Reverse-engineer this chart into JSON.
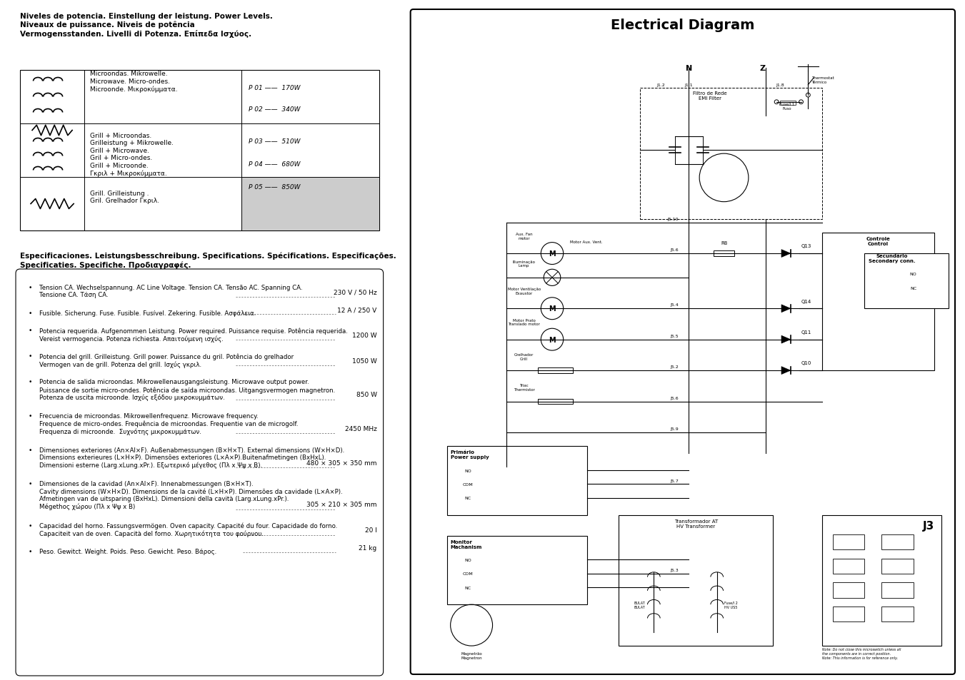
{
  "title": "Electrical Diagram",
  "bg": "#ffffff",
  "power_levels_header": "Niveles de potencia. Einstellung der leistung. Power Levels.\nNiveaux de puissance. Niveis de potência\nVermogensstanden. Livelli di Potenza. Επίπεδα Ισχύος.",
  "row1_text": "Microondas. Mikrowelle.\nMicrowave. Micro-ondes.\nMicroonde. Μικροκύμματα.",
  "row1_levels": [
    "P 01 ——  170W",
    "P 02 ——  340W"
  ],
  "row2_text": "Grill + Microondas.\nGrilleistung + Mikrowelle.\nGrill + Microwave.\nGril + Micro-ondes.\nGrill + Microonde.\nΓκριλ + Μικροκύμματα.",
  "row2_levels": [
    "P 03 ——  510W",
    "P 04 ——  680W",
    "P 05 ——  850W"
  ],
  "row3_text": "Grill. Grilleistung .\nGril. Grelhador Γκριλ.",
  "specs_header": "Especificaciones. Leistungsbesschreibung. Specifications. Spécifications. Especificações.\nSpecificaties. Specifiche. Προδιαγραφές.",
  "specs": [
    [
      "Tension CA. Wechselspannung. AC Line Voltage. Tension CA. Tensão AC. Spanning CA.\nTensione CA. Tάση CA.",
      "230 V / 50 Hz"
    ],
    [
      "Fusible. Sicherung. Fuse. Fusible. Fusível. Zekering. Fusible. Ασφάλεια.",
      "12 A / 250 V"
    ],
    [
      "Potencia requerida. Aufgenommen Leistung. Power required. Puissance requise. Potência requerida.\nVereist vermogencia. Potenza richiesta. Απαιτούμενη ισχύς.",
      "1200 W"
    ],
    [
      "Potencia del grill. Grilleistung. Grill power. Puissance du gril. Potência do grelhador\nVermogen van de grill. Potenza del grill. Ισχύς γκριλ.",
      "1050 W"
    ],
    [
      "Potencia de salida microondas. Mikrowellenausgangsleistung. Microwave output power.\nPuissance de sortie micro-ondes. Potência de saída microondas. Uitgangsvermogen magnetron.\nPotenza de uscita microonde. Ισχύς εξόδου μικροκυμμάτων.",
      "850 W"
    ],
    [
      "Frecuencia de microondas. Mikrowellenfrequenz. Microwave frequency.\nFrequence de micro-ondes. Frequência de microondas. Frequentie van de microgolf.\nFrequenza di microonde.  Συχνότης μικροκυμμάτων.",
      "2450 MHz"
    ],
    [
      "Dimensiones exteriores (An×Al×F). Außenabmessungen (B×H×T). External dimensions (W×H×D).\nDimensions exterieures (L×H×P). Dimensões exteriores (L×A×P).Buitenafmetingen (BxHxL).\nDimensioni esterne (Larg.xLung.xPr.). Εξωτερικό μέγεθος (Πλ x Ψψ x Β).",
      "480 × 305 × 350 mm"
    ],
    [
      "Dimensiones de la cavidad (An×Al×F). Innenabmessungen (B×H×T).\nCavity dimensions (W×H×D). Dimensions de la cavité (L×H×P). Dimensões da cavidade (L×A×P).\nAfmetingen van de uitsparing (BxHxL). Dimensioni della cavità (Larg.xLung.xPr.).\nMégethος χώρου (Πλ x Ψψ x Β)",
      "305 × 210 × 305 mm"
    ],
    [
      "Capacidad del horno. Fassungsvermögen. Oven capacity. Capacité du four. Capacidade do forno.\nCapaciteit van de oven. Capacità del forno. Χωρητικότητα του φούρνου.",
      "20 l"
    ],
    [
      "Peso. Gewitct. Weight. Poids. Peso. Gewicht. Peso. Βάρος.",
      "21 kg"
    ]
  ]
}
